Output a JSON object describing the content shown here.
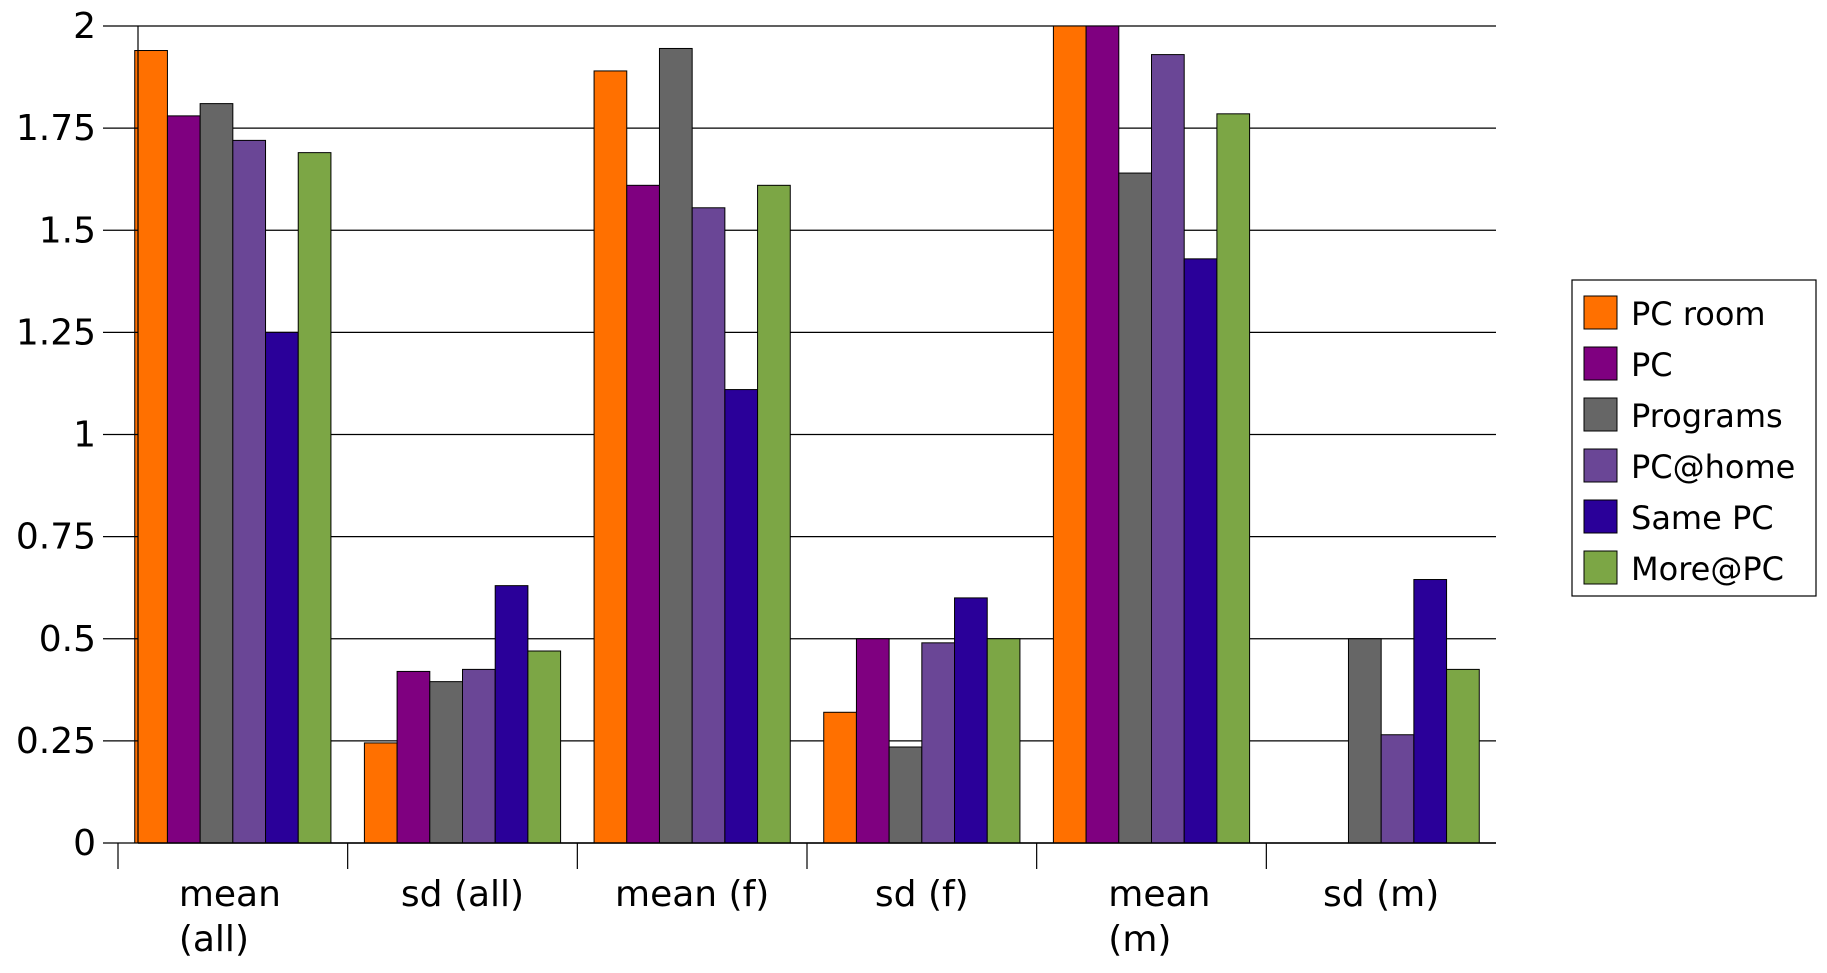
{
  "chart_data": {
    "type": "bar",
    "title": "",
    "xlabel": "",
    "ylabel": "",
    "categories": [
      [
        "mean",
        "(all)"
      ],
      [
        "sd (all)"
      ],
      [
        "mean (f)"
      ],
      [
        "sd (f)"
      ],
      [
        "mean",
        "(m)"
      ],
      [
        "sd (m)"
      ]
    ],
    "ylim": [
      0,
      2
    ],
    "yticks": [
      0,
      0.25,
      0.5,
      0.75,
      1,
      1.25,
      1.5,
      1.75,
      2
    ],
    "ytick_labels": [
      "0",
      "0.25",
      "0.5",
      "0.75",
      "1",
      "1.25",
      "1.5",
      "1.75",
      "2"
    ],
    "grid": true,
    "legend_position": "right",
    "series": [
      {
        "name": "PC room",
        "color": "#FF7000",
        "values": [
          1.94,
          0.245,
          1.89,
          0.32,
          2.0,
          0.0
        ]
      },
      {
        "name": "PC",
        "color": "#7F0080",
        "values": [
          1.78,
          0.42,
          1.61,
          0.5,
          2.0,
          0.0
        ]
      },
      {
        "name": "Programs",
        "color": "#666666",
        "values": [
          1.81,
          0.395,
          1.945,
          0.235,
          1.64,
          0.5
        ]
      },
      {
        "name": "PC@home",
        "color": "#6A4696",
        "values": [
          1.72,
          0.425,
          1.555,
          0.49,
          1.93,
          0.265
        ]
      },
      {
        "name": "Same PC",
        "color": "#2A0099",
        "values": [
          1.25,
          0.63,
          1.11,
          0.6,
          1.43,
          0.645
        ]
      },
      {
        "name": "More@PC",
        "color": "#7CA645",
        "values": [
          1.69,
          0.47,
          1.61,
          0.5,
          1.785,
          0.425
        ]
      }
    ]
  }
}
